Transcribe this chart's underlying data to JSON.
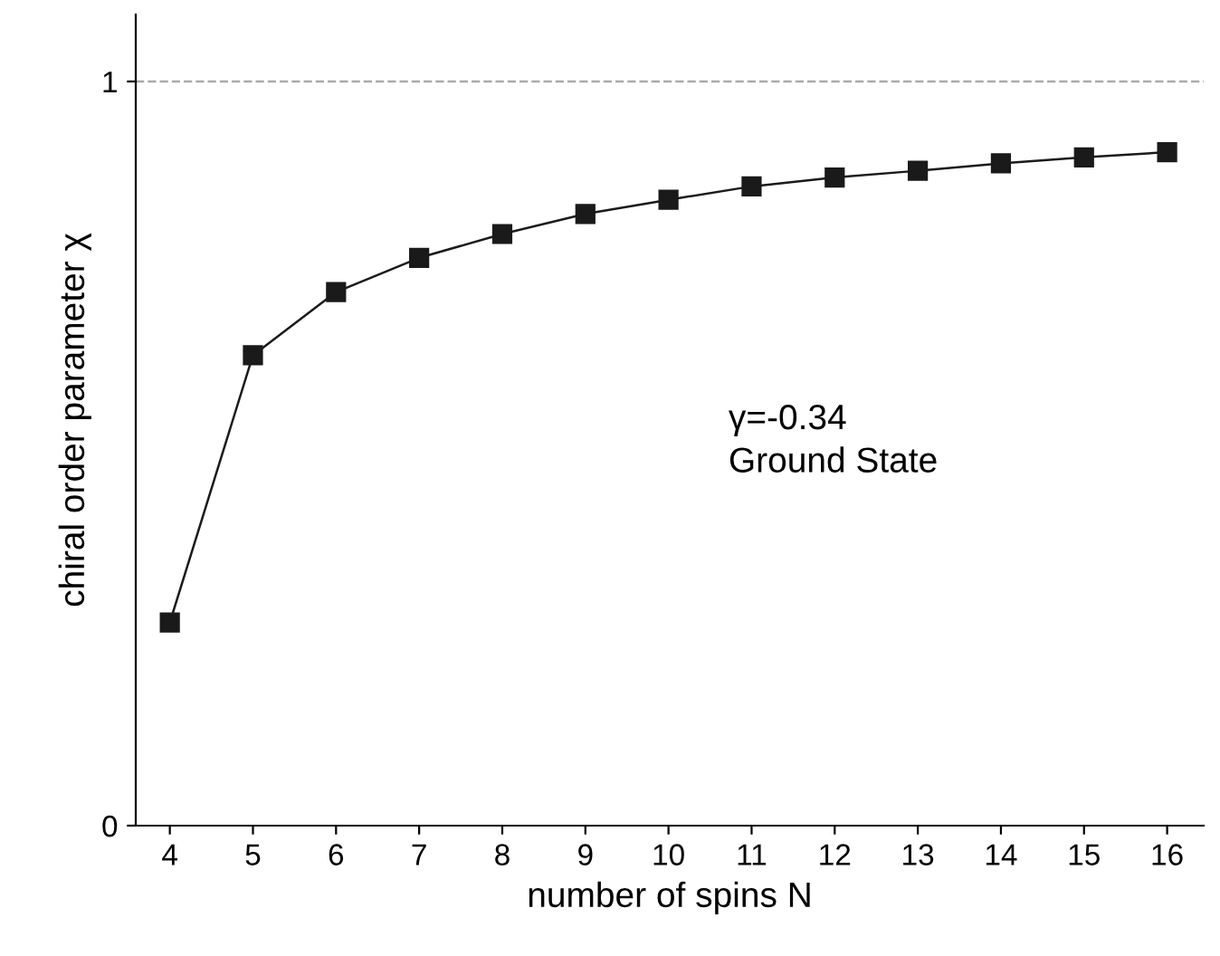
{
  "chart_data": {
    "type": "line",
    "xlabel": "number of spins N",
    "ylabel": "chiral order parameter χ",
    "x": [
      4,
      5,
      6,
      7,
      8,
      9,
      10,
      11,
      12,
      13,
      14,
      15,
      16
    ],
    "series": [
      {
        "color": "#1a1a1a",
        "values": [
          0.273,
          0.632,
          0.717,
          0.763,
          0.795,
          0.822,
          0.841,
          0.859,
          0.871,
          0.88,
          0.89,
          0.898,
          0.905
        ]
      }
    ],
    "marker": "square",
    "line_style": "solid",
    "xlim": [
      3.59,
      16.44
    ],
    "ylim": [
      0,
      1.09
    ],
    "xticks": [
      4,
      5,
      6,
      7,
      8,
      9,
      10,
      11,
      12,
      13,
      14,
      15,
      16
    ],
    "yticks": [
      0,
      1
    ],
    "ref_lines": [
      {
        "axis": "y",
        "value": 1,
        "color": "#aaaaaa",
        "line_style": "dashed"
      }
    ],
    "annotations": [
      "γ=-0.34",
      "Ground State"
    ],
    "grid": false,
    "legend": false
  }
}
